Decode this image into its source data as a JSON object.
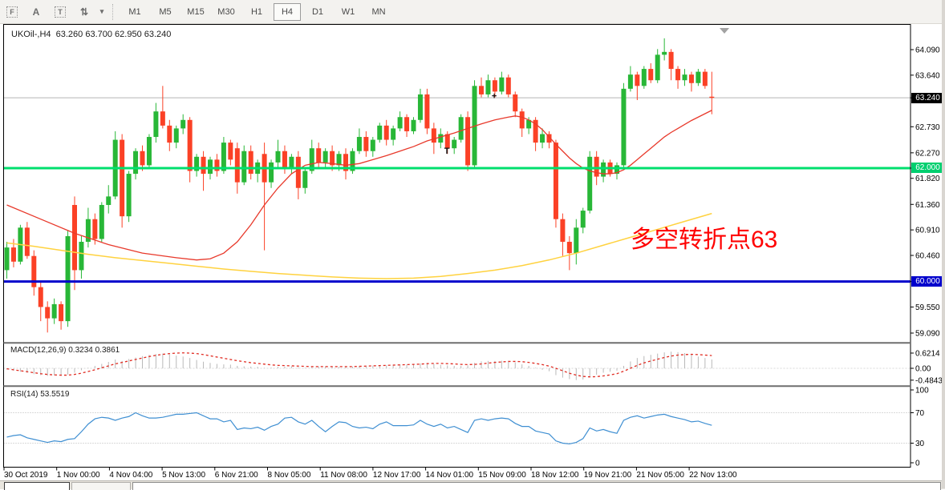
{
  "toolbar": {
    "icons": [
      {
        "name": "dotted-frame-f-icon",
        "glyph": "F"
      },
      {
        "name": "text-a-icon",
        "glyph": "A"
      },
      {
        "name": "text-box-icon",
        "glyph": "T"
      },
      {
        "name": "cursor-mode-icon",
        "glyph": "⇅"
      },
      {
        "name": "dropdown-caret-icon",
        "glyph": "▾"
      }
    ],
    "timeframes": [
      {
        "label": "M1",
        "active": false
      },
      {
        "label": "M5",
        "active": false
      },
      {
        "label": "M15",
        "active": false
      },
      {
        "label": "M30",
        "active": false
      },
      {
        "label": "H1",
        "active": false
      },
      {
        "label": "H4",
        "active": true
      },
      {
        "label": "D1",
        "active": false
      },
      {
        "label": "W1",
        "active": false
      },
      {
        "label": "MN",
        "active": false
      }
    ]
  },
  "header": {
    "symbol": "UKOil-,H4",
    "ohlc": "63.260 63.700 62.950 63.240"
  },
  "annotation": {
    "text": "多空转折点63",
    "color": "#ff0000"
  },
  "chart_data": {
    "type": "candlestick",
    "symbol": "UKOil-",
    "timeframe": "H4",
    "last_ohlc": {
      "open": 63.26,
      "high": 63.7,
      "low": 62.95,
      "close": 63.24
    },
    "colors": {
      "up": "#28b737",
      "down": "#fb4126",
      "ma_fast": "#e8392b",
      "ma_slow": "#ffd23f",
      "macd_hist": "#b9b9b9",
      "macd_signal": "#e02a20",
      "rsi_line": "#3f8fd2",
      "current_line": "#b4b4b4"
    },
    "price_ticks": [
      {
        "v": 64.09,
        "label": "64.090"
      },
      {
        "v": 63.64,
        "label": "63.640"
      },
      {
        "v": 62.73,
        "label": "62.730"
      },
      {
        "v": 62.27,
        "label": "62.270"
      },
      {
        "v": 61.82,
        "label": "61.820"
      },
      {
        "v": 61.36,
        "label": "61.360"
      },
      {
        "v": 60.91,
        "label": "60.910"
      },
      {
        "v": 60.46,
        "label": "60.460"
      },
      {
        "v": 59.55,
        "label": "59.550"
      },
      {
        "v": 59.09,
        "label": "59.090"
      }
    ],
    "hlines": [
      {
        "price": 63.24,
        "color": "#b4b4b4",
        "width": 1,
        "tag": "63.240",
        "tag_bg": "#000000"
      },
      {
        "price": 62.0,
        "color": "#00df6e",
        "width": 3,
        "tag": "62.000",
        "tag_bg": "#00cf6f"
      },
      {
        "price": 60.0,
        "color": "#0000cc",
        "width": 3,
        "tag": "60.000",
        "tag_bg": "#0000cc"
      }
    ],
    "time_ticks": [
      "30 Oct 2019",
      "1 Nov 00:00",
      "4 Nov 04:00",
      "5 Nov 13:00",
      "6 Nov 21:00",
      "8 Nov 05:00",
      "11 Nov 08:00",
      "12 Nov 17:00",
      "14 Nov 01:00",
      "15 Nov 09:00",
      "18 Nov 12:00",
      "19 Nov 21:00",
      "21 Nov 05:00",
      "22 Nov 13:00"
    ],
    "candles": [
      [
        60.2,
        60.7,
        60.05,
        60.6
      ],
      [
        60.6,
        60.75,
        60.25,
        60.35
      ],
      [
        60.35,
        61.0,
        60.3,
        60.95
      ],
      [
        60.95,
        61.05,
        60.4,
        60.45
      ],
      [
        60.45,
        60.55,
        59.75,
        59.9
      ],
      [
        59.9,
        60.0,
        59.3,
        59.55
      ],
      [
        59.55,
        59.65,
        59.1,
        59.35
      ],
      [
        59.35,
        59.7,
        59.25,
        59.6
      ],
      [
        59.6,
        59.65,
        59.15,
        59.3
      ],
      [
        59.3,
        60.9,
        59.2,
        60.8
      ],
      [
        61.35,
        61.5,
        59.85,
        60.2
      ],
      [
        60.2,
        60.8,
        60.05,
        60.7
      ],
      [
        60.7,
        61.3,
        60.6,
        61.1
      ],
      [
        61.1,
        61.2,
        60.65,
        60.75
      ],
      [
        60.75,
        61.4,
        60.7,
        61.35
      ],
      [
        61.35,
        61.7,
        61.2,
        61.5
      ],
      [
        61.5,
        62.65,
        61.45,
        62.5
      ],
      [
        62.5,
        62.6,
        60.95,
        61.15
      ],
      [
        61.15,
        61.95,
        61.05,
        61.9
      ],
      [
        61.9,
        62.35,
        61.8,
        62.3
      ],
      [
        62.3,
        62.4,
        61.95,
        62.05
      ],
      [
        62.05,
        62.6,
        62.0,
        62.55
      ],
      [
        62.55,
        63.15,
        62.45,
        63.0
      ],
      [
        63.0,
        63.45,
        62.7,
        62.75
      ],
      [
        62.75,
        62.85,
        62.3,
        62.45
      ],
      [
        62.45,
        62.75,
        62.35,
        62.7
      ],
      [
        62.7,
        62.95,
        62.6,
        62.85
      ],
      [
        62.85,
        62.9,
        61.75,
        61.95
      ],
      [
        61.95,
        62.25,
        61.85,
        62.2
      ],
      [
        62.2,
        62.3,
        61.6,
        61.9
      ],
      [
        61.9,
        62.2,
        61.8,
        62.15
      ],
      [
        62.15,
        62.25,
        61.85,
        61.95
      ],
      [
        61.95,
        62.55,
        61.9,
        62.45
      ],
      [
        62.45,
        62.5,
        62.05,
        62.15
      ],
      [
        62.35,
        62.45,
        61.55,
        61.75
      ],
      [
        61.75,
        62.4,
        61.7,
        62.3
      ],
      [
        62.3,
        62.4,
        61.8,
        61.9
      ],
      [
        61.9,
        62.15,
        61.75,
        62.1
      ],
      [
        62.25,
        62.45,
        60.55,
        61.75
      ],
      [
        61.75,
        62.15,
        61.65,
        62.1
      ],
      [
        62.1,
        62.5,
        62.0,
        62.3
      ],
      [
        62.3,
        62.4,
        61.9,
        62.0
      ],
      [
        62.0,
        62.25,
        61.9,
        62.2
      ],
      [
        62.2,
        62.3,
        61.45,
        61.65
      ],
      [
        61.65,
        62.0,
        61.55,
        61.95
      ],
      [
        61.95,
        62.5,
        61.9,
        62.35
      ],
      [
        62.35,
        62.45,
        62.0,
        62.1
      ],
      [
        62.1,
        62.35,
        62.0,
        62.3
      ],
      [
        62.3,
        62.4,
        61.95,
        62.05
      ],
      [
        62.05,
        62.3,
        61.95,
        62.25
      ],
      [
        62.25,
        62.35,
        61.8,
        61.95
      ],
      [
        61.95,
        62.35,
        61.9,
        62.3
      ],
      [
        62.3,
        62.7,
        62.25,
        62.55
      ],
      [
        62.55,
        62.65,
        62.2,
        62.3
      ],
      [
        62.3,
        62.55,
        62.2,
        62.5
      ],
      [
        62.5,
        62.8,
        62.45,
        62.75
      ],
      [
        62.75,
        62.85,
        62.4,
        62.5
      ],
      [
        62.5,
        62.75,
        62.4,
        62.7
      ],
      [
        62.7,
        63.0,
        62.65,
        62.9
      ],
      [
        62.9,
        62.95,
        62.55,
        62.65
      ],
      [
        62.65,
        62.9,
        62.6,
        62.85
      ],
      [
        62.85,
        63.4,
        62.8,
        63.3
      ],
      [
        63.3,
        63.4,
        62.6,
        62.7
      ],
      [
        62.7,
        62.8,
        62.25,
        62.45
      ],
      [
        62.45,
        62.7,
        62.35,
        62.6
      ],
      [
        62.6,
        62.65,
        62.25,
        62.35
      ],
      [
        62.35,
        62.55,
        62.25,
        62.5
      ],
      [
        62.5,
        62.95,
        62.45,
        62.9
      ],
      [
        62.9,
        63.0,
        61.95,
        62.05
      ],
      [
        62.05,
        63.55,
        62.0,
        63.45
      ],
      [
        63.45,
        63.6,
        63.25,
        63.3
      ],
      [
        63.3,
        63.65,
        63.25,
        63.55
      ],
      [
        63.55,
        63.6,
        63.25,
        63.35
      ],
      [
        63.35,
        63.7,
        63.3,
        63.6
      ],
      [
        63.6,
        63.65,
        63.25,
        63.3
      ],
      [
        63.3,
        63.35,
        62.9,
        63.0
      ],
      [
        63.0,
        63.05,
        62.55,
        62.7
      ],
      [
        62.7,
        62.9,
        62.6,
        62.85
      ],
      [
        62.85,
        62.9,
        62.3,
        62.45
      ],
      [
        62.45,
        62.7,
        62.35,
        62.6
      ],
      [
        62.6,
        62.65,
        62.35,
        62.45
      ],
      [
        62.45,
        62.5,
        60.95,
        61.1
      ],
      [
        61.1,
        61.2,
        60.45,
        60.7
      ],
      [
        60.7,
        60.8,
        60.2,
        60.5
      ],
      [
        60.5,
        61.1,
        60.3,
        60.95
      ],
      [
        60.95,
        61.3,
        60.85,
        61.25
      ],
      [
        61.25,
        62.3,
        61.2,
        62.2
      ],
      [
        62.2,
        62.3,
        61.7,
        61.85
      ],
      [
        61.85,
        62.15,
        61.75,
        62.1
      ],
      [
        62.1,
        62.15,
        61.85,
        61.9
      ],
      [
        61.9,
        62.1,
        61.8,
        62.05
      ],
      [
        62.05,
        63.5,
        62.0,
        63.4
      ],
      [
        63.4,
        63.8,
        63.35,
        63.65
      ],
      [
        63.65,
        63.7,
        63.2,
        63.45
      ],
      [
        63.45,
        63.8,
        63.4,
        63.75
      ],
      [
        63.75,
        63.85,
        63.5,
        63.55
      ],
      [
        63.55,
        64.1,
        63.5,
        64.0
      ],
      [
        64.0,
        64.29,
        63.9,
        64.05
      ],
      [
        64.05,
        64.1,
        63.55,
        63.75
      ],
      [
        63.75,
        63.8,
        63.4,
        63.55
      ],
      [
        63.55,
        63.75,
        63.45,
        63.65
      ],
      [
        63.65,
        63.7,
        63.35,
        63.5
      ],
      [
        63.5,
        63.75,
        63.45,
        63.7
      ],
      [
        63.7,
        63.75,
        63.4,
        63.45
      ],
      [
        63.26,
        63.7,
        62.95,
        63.24
      ]
    ],
    "ma_fast_red": [
      [
        0,
        61.35
      ],
      [
        5,
        61.1
      ],
      [
        10,
        60.85
      ],
      [
        15,
        60.65
      ],
      [
        20,
        60.5
      ],
      [
        25,
        60.42
      ],
      [
        28,
        60.38
      ],
      [
        30,
        60.4
      ],
      [
        32,
        60.5
      ],
      [
        34,
        60.7
      ],
      [
        36,
        61.0
      ],
      [
        38,
        61.35
      ],
      [
        40,
        61.65
      ],
      [
        42,
        61.9
      ],
      [
        44,
        62.05
      ],
      [
        46,
        62.1
      ],
      [
        48,
        62.08
      ],
      [
        50,
        62.05
      ],
      [
        52,
        62.08
      ],
      [
        54,
        62.15
      ],
      [
        56,
        62.22
      ],
      [
        58,
        62.3
      ],
      [
        60,
        62.38
      ],
      [
        62,
        62.48
      ],
      [
        64,
        62.55
      ],
      [
        66,
        62.62
      ],
      [
        68,
        62.7
      ],
      [
        70,
        62.78
      ],
      [
        72,
        62.85
      ],
      [
        74,
        62.9
      ],
      [
        75,
        62.92
      ],
      [
        76,
        62.9
      ],
      [
        77,
        62.85
      ],
      [
        78,
        62.78
      ],
      [
        79,
        62.68
      ],
      [
        80,
        62.55
      ],
      [
        81,
        62.42
      ],
      [
        82,
        62.3
      ],
      [
        83,
        62.18
      ],
      [
        84,
        62.08
      ],
      [
        85,
        62.0
      ],
      [
        86,
        61.95
      ],
      [
        87,
        61.92
      ],
      [
        88,
        61.9
      ],
      [
        89,
        61.9
      ],
      [
        90,
        61.92
      ],
      [
        91,
        61.97
      ],
      [
        92,
        62.05
      ],
      [
        93,
        62.15
      ],
      [
        94,
        62.25
      ],
      [
        95,
        62.35
      ],
      [
        96,
        62.45
      ],
      [
        97,
        62.55
      ],
      [
        98,
        62.63
      ],
      [
        99,
        62.7
      ],
      [
        100,
        62.77
      ],
      [
        101,
        62.84
      ],
      [
        102,
        62.9
      ],
      [
        103,
        62.96
      ],
      [
        104,
        63.02
      ]
    ],
    "ma_slow_yellow": [
      [
        0,
        60.68
      ],
      [
        4,
        60.62
      ],
      [
        8,
        60.55
      ],
      [
        12,
        60.48
      ],
      [
        16,
        60.42
      ],
      [
        20,
        60.37
      ],
      [
        24,
        60.32
      ],
      [
        28,
        60.27
      ],
      [
        32,
        60.22
      ],
      [
        36,
        60.18
      ],
      [
        40,
        60.14
      ],
      [
        44,
        60.11
      ],
      [
        48,
        60.08
      ],
      [
        52,
        60.06
      ],
      [
        56,
        60.05
      ],
      [
        60,
        60.06
      ],
      [
        64,
        60.09
      ],
      [
        68,
        60.14
      ],
      [
        72,
        60.2
      ],
      [
        76,
        60.28
      ],
      [
        80,
        60.38
      ],
      [
        84,
        60.5
      ],
      [
        88,
        60.64
      ],
      [
        92,
        60.78
      ],
      [
        96,
        60.92
      ],
      [
        100,
        61.06
      ],
      [
        104,
        61.2
      ]
    ],
    "markers": [
      {
        "glyph": "T",
        "i": 65,
        "price": 62.31
      },
      {
        "glyph": "+",
        "i": 72,
        "price": 63.28
      }
    ],
    "macd": {
      "label": "MACD(12,26,9)",
      "values": "0.3234 0.3861",
      "axis": [
        {
          "v": 0.6214,
          "label": "0.6214"
        },
        {
          "v": 0.0,
          "label": "0.00"
        },
        {
          "v": -0.4843,
          "label": "-0.4843"
        }
      ],
      "hist": [
        -0.05,
        -0.1,
        -0.14,
        -0.18,
        -0.24,
        -0.28,
        -0.31,
        -0.29,
        -0.3,
        -0.26,
        -0.18,
        -0.08,
        0.02,
        0.1,
        0.18,
        0.26,
        0.36,
        0.3,
        0.38,
        0.44,
        0.5,
        0.55,
        0.58,
        0.6,
        0.57,
        0.52,
        0.48,
        0.42,
        0.34,
        0.27,
        0.22,
        0.18,
        0.16,
        0.15,
        0.1,
        0.08,
        0.07,
        0.06,
        0.02,
        0.03,
        0.06,
        0.07,
        0.08,
        0.04,
        0.02,
        0.06,
        0.07,
        0.08,
        0.07,
        0.06,
        0.05,
        0.07,
        0.1,
        0.1,
        0.11,
        0.13,
        0.12,
        0.14,
        0.16,
        0.15,
        0.16,
        0.2,
        0.22,
        0.18,
        0.14,
        0.12,
        0.1,
        0.1,
        0.12,
        0.22,
        0.28,
        0.3,
        0.3,
        0.31,
        0.3,
        0.24,
        0.16,
        0.1,
        0.02,
        -0.06,
        -0.12,
        -0.28,
        -0.38,
        -0.44,
        -0.48,
        -0.46,
        -0.36,
        -0.26,
        -0.18,
        -0.14,
        -0.1,
        0.1,
        0.28,
        0.42,
        0.5,
        0.55,
        0.6,
        0.65,
        0.68,
        0.66,
        0.62,
        0.55,
        0.48,
        0.42,
        0.36
      ],
      "signal": [
        -0.02,
        -0.06,
        -0.1,
        -0.14,
        -0.18,
        -0.22,
        -0.25,
        -0.27,
        -0.28,
        -0.28,
        -0.25,
        -0.2,
        -0.13,
        -0.06,
        0.02,
        0.1,
        0.18,
        0.24,
        0.3,
        0.36,
        0.42,
        0.48,
        0.53,
        0.57,
        0.6,
        0.62,
        0.63,
        0.62,
        0.6,
        0.56,
        0.51,
        0.46,
        0.41,
        0.36,
        0.31,
        0.27,
        0.23,
        0.2,
        0.17,
        0.14,
        0.12,
        0.11,
        0.1,
        0.09,
        0.08,
        0.07,
        0.07,
        0.07,
        0.07,
        0.07,
        0.07,
        0.07,
        0.08,
        0.09,
        0.1,
        0.11,
        0.12,
        0.13,
        0.14,
        0.15,
        0.16,
        0.17,
        0.19,
        0.2,
        0.2,
        0.19,
        0.18,
        0.16,
        0.15,
        0.16,
        0.18,
        0.21,
        0.24,
        0.26,
        0.28,
        0.28,
        0.27,
        0.24,
        0.2,
        0.15,
        0.09,
        0.0,
        -0.1,
        -0.2,
        -0.28,
        -0.33,
        -0.35,
        -0.34,
        -0.31,
        -0.27,
        -0.22,
        -0.12,
        0.0,
        0.12,
        0.22,
        0.3,
        0.37,
        0.44,
        0.5,
        0.54,
        0.56,
        0.57,
        0.56,
        0.54,
        0.52
      ]
    },
    "rsi": {
      "label": "RSI(14)",
      "value": "53.5519",
      "levels": [
        70,
        30
      ],
      "axis": [
        {
          "v": 100,
          "label": "100"
        },
        {
          "v": 70,
          "label": "70"
        },
        {
          "v": 30,
          "label": "30"
        },
        {
          "v": 0,
          "label": "0"
        }
      ],
      "series": [
        38,
        40,
        41,
        37,
        35,
        33,
        31,
        33,
        32,
        35,
        36,
        45,
        55,
        62,
        64,
        63,
        60,
        63,
        65,
        70,
        66,
        63,
        63,
        64,
        66,
        68,
        68,
        69,
        70,
        66,
        62,
        62,
        58,
        60,
        48,
        50,
        49,
        51,
        47,
        52,
        55,
        63,
        64,
        58,
        55,
        60,
        52,
        45,
        52,
        58,
        57,
        52,
        50,
        51,
        49,
        55,
        58,
        53,
        53,
        53,
        54,
        60,
        55,
        52,
        55,
        50,
        52,
        48,
        44,
        60,
        62,
        60,
        62,
        63,
        62,
        56,
        52,
        52,
        46,
        44,
        42,
        33,
        30,
        29,
        31,
        36,
        50,
        46,
        48,
        45,
        43,
        60,
        64,
        66,
        63,
        65,
        67,
        68,
        65,
        63,
        61,
        58,
        59,
        56,
        53.5
      ]
    }
  }
}
